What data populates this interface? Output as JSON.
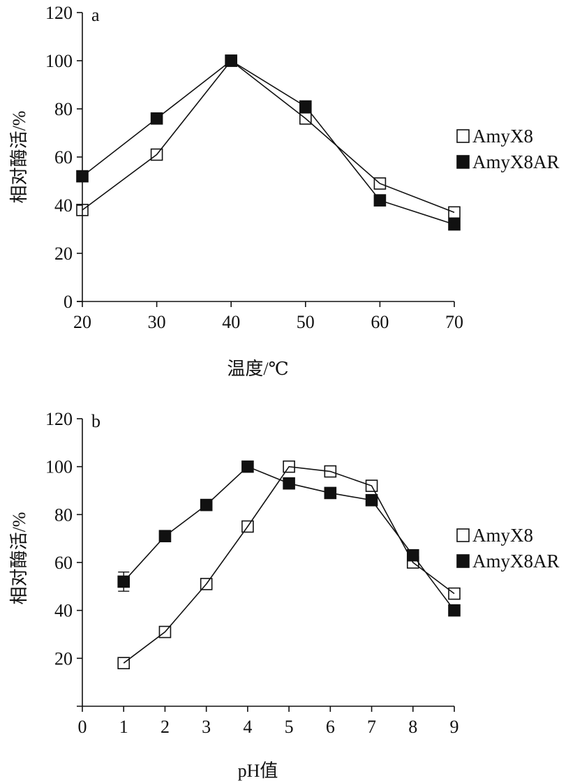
{
  "chart_data": [
    {
      "type": "line",
      "panel_label": "a",
      "xlabel": "温度/℃",
      "ylabel": "相对酶活/%",
      "x": [
        20,
        30,
        40,
        50,
        60,
        70
      ],
      "xticks": [
        "20",
        "30",
        "40",
        "50",
        "60",
        "70"
      ],
      "xlim": [
        20,
        70
      ],
      "yticks": [
        "0",
        "20",
        "40",
        "60",
        "80",
        "100",
        "120"
      ],
      "ylim": [
        0,
        120
      ],
      "grid": false,
      "legend_position": "right",
      "series": [
        {
          "name": "AmyX8",
          "marker": "open-square",
          "values": [
            38,
            61,
            100,
            76,
            49,
            37
          ]
        },
        {
          "name": "AmyX8AR",
          "marker": "filled-square",
          "values": [
            52,
            76,
            100,
            81,
            42,
            32
          ]
        }
      ]
    },
    {
      "type": "line",
      "panel_label": "b",
      "xlabel": "pH值",
      "ylabel": "相对酶活/%",
      "x": [
        1,
        2,
        3,
        4,
        5,
        6,
        7,
        8,
        9
      ],
      "xticks": [
        "0",
        "1",
        "2",
        "3",
        "4",
        "5",
        "6",
        "7",
        "8",
        "9"
      ],
      "xlim": [
        0,
        9
      ],
      "yticks": [
        "20",
        "40",
        "60",
        "80",
        "100",
        "120"
      ],
      "ylim": [
        0,
        120
      ],
      "grid": false,
      "legend_position": "right",
      "series": [
        {
          "name": "AmyX8",
          "marker": "open-square",
          "values": [
            18,
            31,
            51,
            75,
            100,
            98,
            92,
            60,
            47
          ]
        },
        {
          "name": "AmyX8AR",
          "marker": "filled-square",
          "values": [
            52,
            71,
            84,
            100,
            93,
            89,
            86,
            63,
            40
          ],
          "error_first": 4
        }
      ]
    }
  ]
}
